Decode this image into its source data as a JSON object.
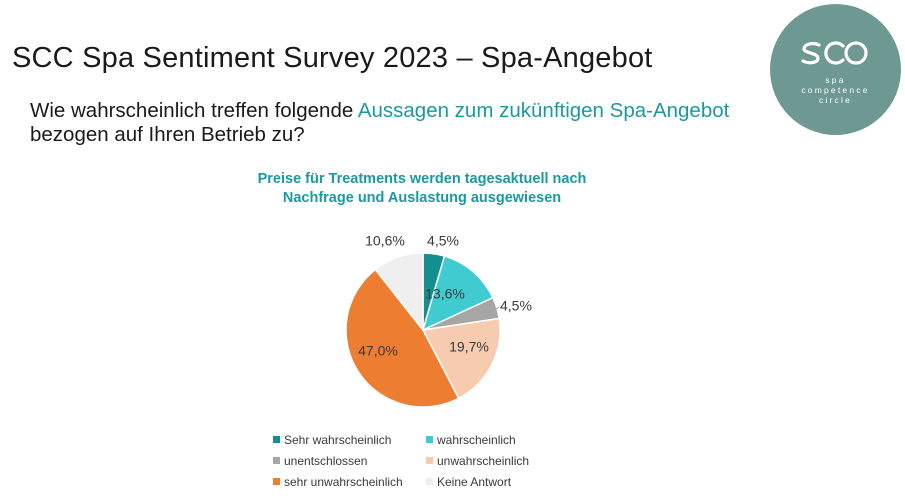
{
  "page_title": "SCC Spa Sentiment Survey 2023 – Spa-Angebot",
  "question": {
    "part1": "Wie wahrscheinlich treffen folgende ",
    "highlight": "Aussagen zum zukünftigen Spa-Angebot",
    "part2": " bezogen auf Ihren Betrieb zu?"
  },
  "logo": {
    "line1": "spa",
    "line2": "competence",
    "line3": "circle",
    "color": "#6e9892"
  },
  "chart_data": {
    "type": "pie",
    "title": "Preise für Treatments werden tagesaktuell nach Nachfrage und Auslastung ausgewiesen",
    "legend_position": "bottom",
    "slices": [
      {
        "name": "Sehr wahrscheinlich",
        "value": 4.5,
        "label": "4,5%",
        "color": "#138f8e"
      },
      {
        "name": "wahrscheinlich",
        "value": 13.6,
        "label": "13,6%",
        "color": "#3fcbd0"
      },
      {
        "name": "unentschlossen",
        "value": 4.5,
        "label": "4,5%",
        "color": "#a6a6a6"
      },
      {
        "name": "unwahrscheinlich",
        "value": 19.7,
        "label": "19,7%",
        "color": "#f6cbb0"
      },
      {
        "name": "sehr unwahrscheinlich",
        "value": 47.0,
        "label": "47,0%",
        "color": "#ed7d31"
      },
      {
        "name": "Keine Antwort",
        "value": 10.6,
        "label": "10,6%",
        "color": "#efefef"
      }
    ]
  }
}
